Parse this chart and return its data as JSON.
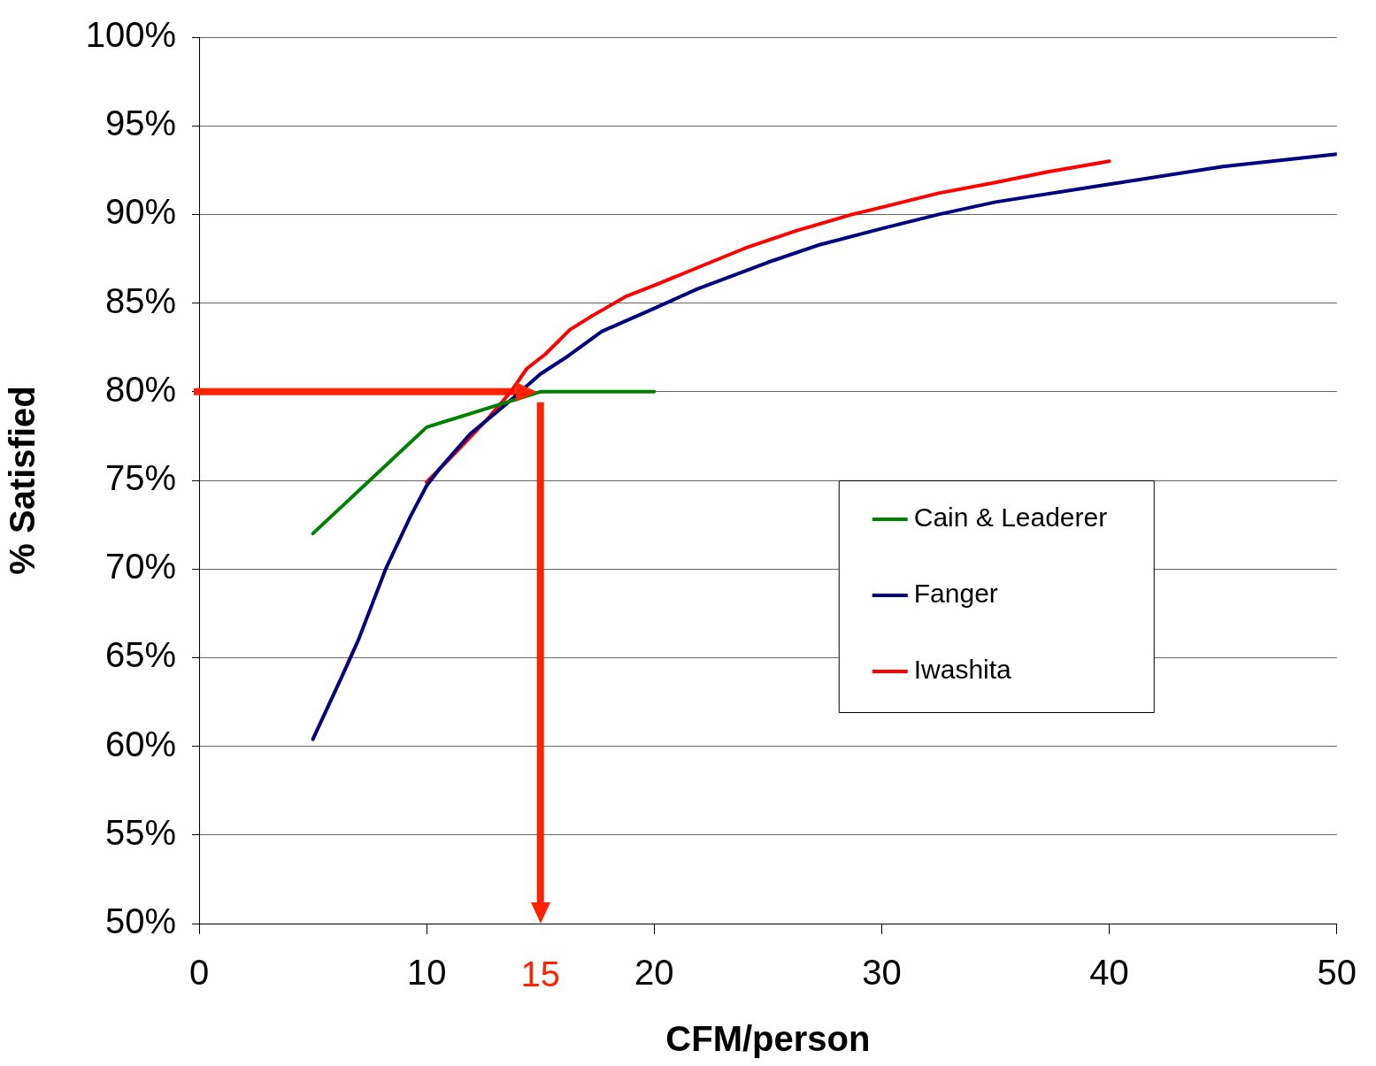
{
  "chart_data": {
    "type": "line",
    "xlabel": "CFM/person",
    "ylabel": "% Satisfied",
    "xlim": [
      0,
      50
    ],
    "xticks": [
      0,
      10,
      20,
      30,
      40,
      50
    ],
    "ylim": [
      50,
      100
    ],
    "yticks": [
      {
        "value": 50,
        "label": "50%"
      },
      {
        "value": 55,
        "label": "55%"
      },
      {
        "value": 60,
        "label": "60%"
      },
      {
        "value": 65,
        "label": "65%"
      },
      {
        "value": 70,
        "label": "70%"
      },
      {
        "value": 75,
        "label": "75%"
      },
      {
        "value": 80,
        "label": "80%"
      },
      {
        "value": 85,
        "label": "85%"
      },
      {
        "value": 90,
        "label": "90%"
      },
      {
        "value": 95,
        "label": "95%"
      },
      {
        "value": 100,
        "label": "100%"
      }
    ],
    "grid": "y",
    "legend": "right",
    "marker": "none",
    "line_style": "solid",
    "series": [
      {
        "name": "Cain & Leaderer",
        "color": "#008000",
        "x": [
          5,
          10,
          15,
          20
        ],
        "values": [
          72,
          78,
          80,
          80
        ]
      },
      {
        "name": "Fanger",
        "color": "#000080",
        "x": [
          5,
          6.3,
          7,
          8.2,
          9.3,
          10,
          10.6,
          11.9,
          13.5,
          15,
          16.2,
          17.7,
          20,
          21.9,
          25,
          27.3,
          30,
          32.5,
          35,
          40,
          45,
          50
        ],
        "values": [
          60.4,
          64,
          66,
          70,
          73,
          74.7,
          75.7,
          77.6,
          79.3,
          81,
          82,
          83.4,
          84.7,
          85.8,
          87.3,
          88.3,
          89.2,
          90,
          90.7,
          91.7,
          92.7,
          93.4
        ]
      },
      {
        "name": "Iwashita",
        "color": "#ff0000",
        "x": [
          10,
          11.3,
          12.7,
          13.7,
          14.4,
          15.2,
          16.3,
          17.3,
          18.8,
          20,
          22.1,
          24,
          26.3,
          28.7,
          30,
          32.5,
          35,
          37.3,
          40
        ],
        "values": [
          74.9,
          76.6,
          78.5,
          80,
          81.3,
          82.1,
          83.5,
          84.3,
          85.4,
          86,
          87.1,
          88.1,
          89.1,
          90,
          90.4,
          91.2,
          91.8,
          92.4,
          93
        ]
      }
    ],
    "ref_lines": [
      {
        "axis": "y",
        "value": 80,
        "color": "#ff2200"
      },
      {
        "axis": "x",
        "value": 15,
        "label": "15",
        "color": "#ff2200"
      }
    ]
  }
}
